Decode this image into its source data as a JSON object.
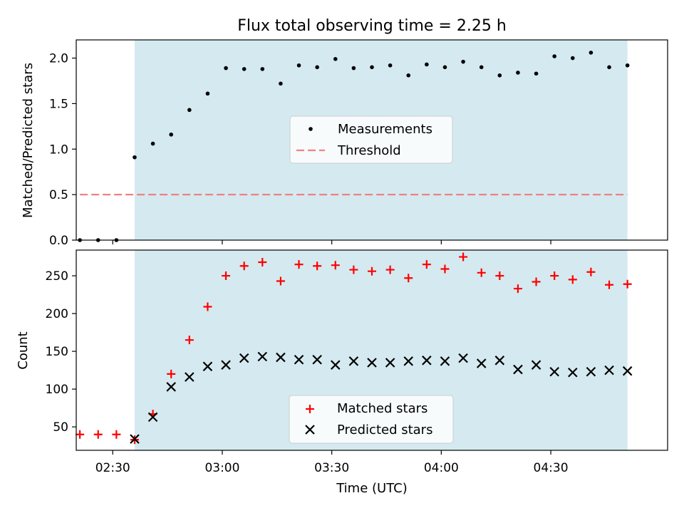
{
  "title": "Flux total observing time = 2.25 h",
  "colors": {
    "observing_band": "#d4eaf0",
    "measurement": "#000000",
    "threshold": "#f08080",
    "matched": "#ff0000",
    "predicted": "#000000"
  },
  "chart_data": [
    {
      "type": "scatter",
      "ylabel": "Matched/Predicted stars",
      "ylim": [
        0,
        2.2
      ],
      "yticks": [
        0,
        0.5,
        1.0,
        1.5,
        2.0
      ],
      "ytick_labels": [
        "0.0",
        "0.5",
        "1.0",
        "1.5",
        "2.0"
      ],
      "xlim": [
        "02:20",
        "05:02"
      ],
      "xticks": [
        "02:30",
        "03:00",
        "03:30",
        "04:00",
        "04:30"
      ],
      "shaded_interval": [
        "02:36",
        "04:51"
      ],
      "legend": "center",
      "series": [
        {
          "name": "Measurements",
          "marker": "dot",
          "x": [
            "02:21",
            "02:26",
            "02:31",
            "02:36",
            "02:41",
            "02:46",
            "02:51",
            "02:56",
            "03:01",
            "03:06",
            "03:11",
            "03:16",
            "03:21",
            "03:26",
            "03:31",
            "03:36",
            "03:41",
            "03:46",
            "03:51",
            "03:56",
            "04:01",
            "04:06",
            "04:11",
            "04:16",
            "04:21",
            "04:26",
            "04:31",
            "04:36",
            "04:41",
            "04:46",
            "04:51"
          ],
          "y": [
            0,
            0,
            0,
            0.91,
            1.06,
            1.16,
            1.43,
            1.61,
            1.89,
            1.88,
            1.88,
            1.72,
            1.92,
            1.9,
            1.99,
            1.89,
            1.9,
            1.92,
            1.81,
            1.93,
            1.9,
            1.96,
            1.9,
            1.81,
            1.84,
            1.83,
            2.02,
            2.0,
            2.06,
            1.9,
            1.92
          ]
        },
        {
          "name": "Threshold",
          "style": "dashed",
          "x": [
            "02:21",
            "04:51"
          ],
          "y": [
            0.5,
            0.5
          ]
        }
      ]
    },
    {
      "type": "scatter",
      "ylabel": "Count",
      "xlabel": "Time (UTC)",
      "ylim": [
        19,
        284
      ],
      "yticks": [
        50,
        100,
        150,
        200,
        250
      ],
      "ytick_labels": [
        "50",
        "100",
        "150",
        "200",
        "250"
      ],
      "xlim": [
        "02:20",
        "05:02"
      ],
      "xticks": [
        "02:30",
        "03:00",
        "03:30",
        "04:00",
        "04:30"
      ],
      "xtick_labels": [
        "02:30",
        "03:00",
        "03:30",
        "04:00",
        "04:30"
      ],
      "shaded_interval": [
        "02:36",
        "04:51"
      ],
      "legend": "bottom-center",
      "series": [
        {
          "name": "Matched stars",
          "marker": "plus",
          "x": [
            "02:21",
            "02:26",
            "02:31",
            "02:36",
            "02:41",
            "02:46",
            "02:51",
            "02:56",
            "03:01",
            "03:06",
            "03:11",
            "03:16",
            "03:21",
            "03:26",
            "03:31",
            "03:36",
            "03:41",
            "03:46",
            "03:51",
            "03:56",
            "04:01",
            "04:06",
            "04:11",
            "04:16",
            "04:21",
            "04:26",
            "04:31",
            "04:36",
            "04:41",
            "04:46",
            "04:51"
          ],
          "y": [
            40,
            40,
            40,
            33,
            67,
            120,
            165,
            209,
            250,
            263,
            268,
            243,
            265,
            263,
            264,
            258,
            256,
            258,
            247,
            265,
            259,
            275,
            254,
            250,
            233,
            242,
            250,
            245,
            255,
            238,
            239
          ]
        },
        {
          "name": "Predicted stars",
          "marker": "x",
          "x": [
            "02:36",
            "02:41",
            "02:46",
            "02:51",
            "02:56",
            "03:01",
            "03:06",
            "03:11",
            "03:16",
            "03:21",
            "03:26",
            "03:31",
            "03:36",
            "03:41",
            "03:46",
            "03:51",
            "03:56",
            "04:01",
            "04:06",
            "04:11",
            "04:16",
            "04:21",
            "04:26",
            "04:31",
            "04:36",
            "04:41",
            "04:46",
            "04:51"
          ],
          "y": [
            34,
            63,
            103,
            116,
            130,
            132,
            141,
            143,
            142,
            139,
            139,
            132,
            137,
            135,
            135,
            137,
            138,
            137,
            141,
            134,
            138,
            126,
            132,
            123,
            122,
            123,
            125,
            124
          ]
        }
      ]
    }
  ]
}
